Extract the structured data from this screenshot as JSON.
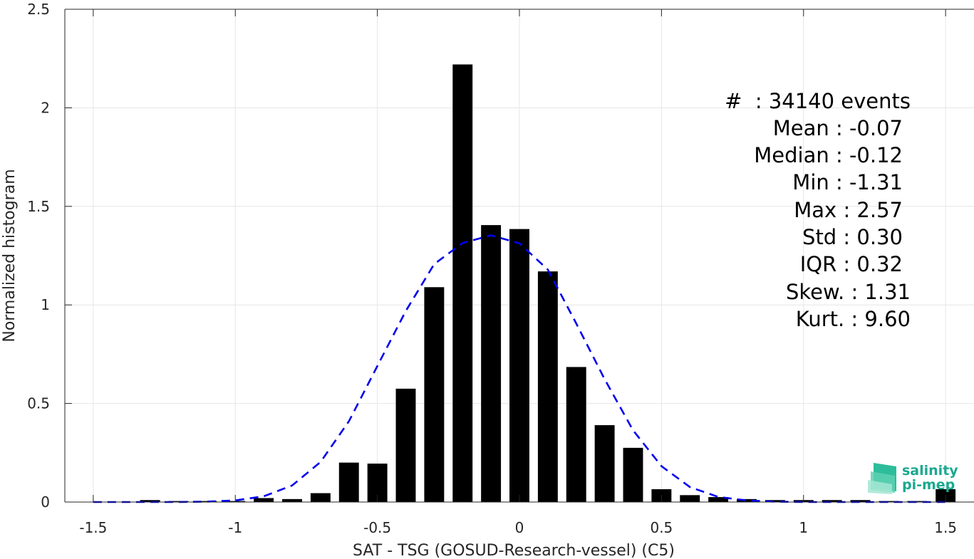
{
  "chart_data": {
    "type": "bar",
    "xlabel": "SAT - TSG (GOSUD-Research-vessel) (C5)",
    "ylabel": "Normalized histogram",
    "xlim": [
      -1.6,
      1.6
    ],
    "ylim": [
      0,
      2.5
    ],
    "xticks": [
      -1.5,
      -1,
      -0.5,
      0,
      0.5,
      1,
      1.5
    ],
    "xtick_labels": [
      "-1.5",
      "-1",
      "-0.5",
      "0",
      "0.5",
      "1",
      "1.5"
    ],
    "yticks": [
      0,
      0.5,
      1,
      1.5,
      2,
      2.5
    ],
    "ytick_labels": [
      "0",
      "0.5",
      "1",
      "1.5",
      "2",
      "2.5"
    ],
    "grid": true,
    "bar_width": 0.07,
    "bar_color": "#000000",
    "bars": [
      {
        "x": -1.3,
        "y": 0.01
      },
      {
        "x": -1.2,
        "y": 0.005
      },
      {
        "x": -1.1,
        "y": 0.005
      },
      {
        "x": -1.0,
        "y": 0.005
      },
      {
        "x": -0.9,
        "y": 0.02
      },
      {
        "x": -0.8,
        "y": 0.015
      },
      {
        "x": -0.7,
        "y": 0.045
      },
      {
        "x": -0.6,
        "y": 0.2
      },
      {
        "x": -0.5,
        "y": 0.195
      },
      {
        "x": -0.4,
        "y": 0.575
      },
      {
        "x": -0.3,
        "y": 1.09
      },
      {
        "x": -0.2,
        "y": 2.22
      },
      {
        "x": -0.1,
        "y": 1.405
      },
      {
        "x": 0.0,
        "y": 1.385
      },
      {
        "x": 0.1,
        "y": 1.17
      },
      {
        "x": 0.2,
        "y": 0.685
      },
      {
        "x": 0.3,
        "y": 0.39
      },
      {
        "x": 0.4,
        "y": 0.275
      },
      {
        "x": 0.5,
        "y": 0.065
      },
      {
        "x": 0.6,
        "y": 0.035
      },
      {
        "x": 0.7,
        "y": 0.025
      },
      {
        "x": 0.8,
        "y": 0.015
      },
      {
        "x": 0.9,
        "y": 0.01
      },
      {
        "x": 1.0,
        "y": 0.01
      },
      {
        "x": 1.1,
        "y": 0.01
      },
      {
        "x": 1.2,
        "y": 0.01
      },
      {
        "x": 1.3,
        "y": 0.005
      },
      {
        "x": 1.4,
        "y": 0.005
      },
      {
        "x": 1.5,
        "y": 0.065
      }
    ],
    "fit_curve": {
      "style": "dashed",
      "color": "#0000ee",
      "x": [
        -1.5,
        -1.4,
        -1.3,
        -1.2,
        -1.1,
        -1.0,
        -0.9,
        -0.8,
        -0.7,
        -0.6,
        -0.5,
        -0.4,
        -0.3,
        -0.2,
        -0.1,
        0.0,
        0.1,
        0.2,
        0.3,
        0.4,
        0.5,
        0.6,
        0.7,
        0.8,
        0.9,
        1.0,
        1.1,
        1.2,
        1.3,
        1.4,
        1.5
      ],
      "y": [
        0.0,
        0.0,
        0.0,
        0.0,
        0.002,
        0.008,
        0.029,
        0.084,
        0.203,
        0.41,
        0.69,
        0.969,
        1.207,
        1.314,
        1.353,
        1.313,
        1.179,
        0.906,
        0.623,
        0.364,
        0.182,
        0.076,
        0.026,
        0.008,
        0.002,
        0.0,
        0.0,
        0.0,
        0.0,
        0.0,
        0.0
      ]
    },
    "stats": [
      "#  : 34140 events",
      "Mean : -0.07",
      "Median : -0.12",
      "Min : -1.31",
      "Max : 2.57",
      "Std : 0.30",
      "IQR : 0.32",
      "Skew. : 1.31",
      "Kurt. : 9.60"
    ]
  },
  "logo": {
    "line1": "salinity",
    "line2": "pi-mep",
    "color": "#1aa98f"
  }
}
